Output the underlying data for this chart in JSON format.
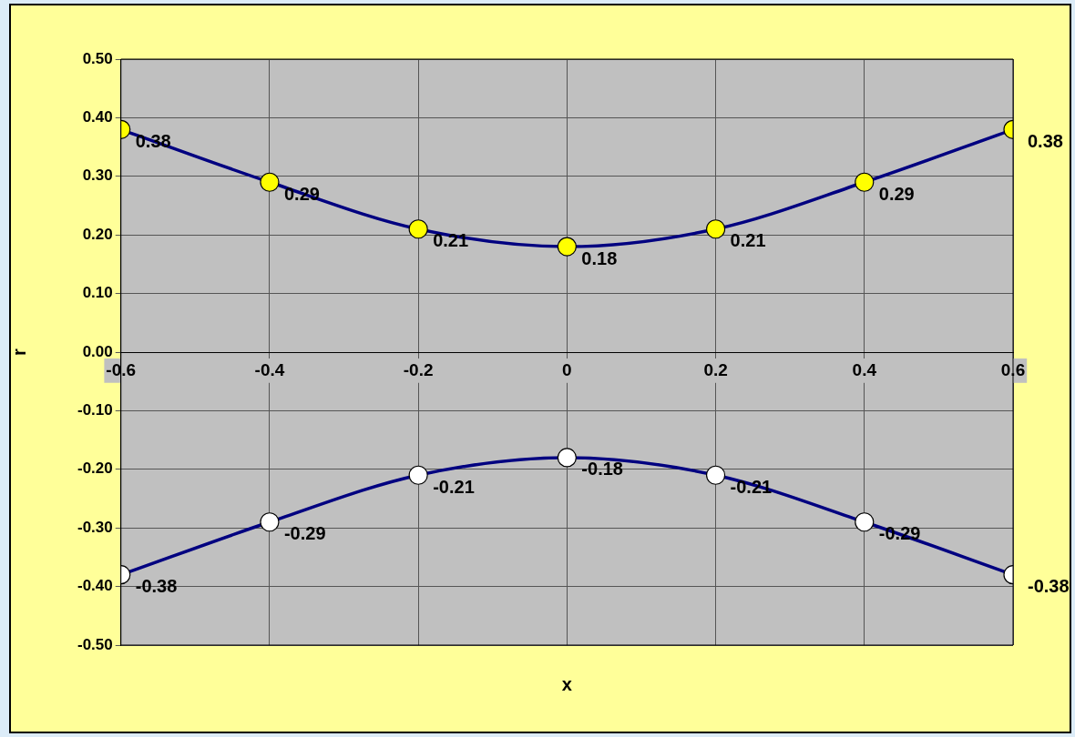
{
  "chart_data": {
    "type": "line",
    "xlabel": "x",
    "ylabel": "r",
    "x": [
      -0.6,
      -0.4,
      -0.2,
      0,
      0.2,
      0.4,
      0.6
    ],
    "series": [
      {
        "color": "#000080",
        "colors": [
          "#ffff00",
          "#ffff00",
          "#ffff00",
          "#ffff00",
          "#ffff00",
          "#ffff00",
          "#ffff00"
        ],
        "values": [
          0.38,
          0.29,
          0.21,
          0.18,
          0.21,
          0.29,
          0.38
        ]
      },
      {
        "color": "#000080",
        "colors": [
          "#ffffff",
          "#ffffff",
          "#ffffff",
          "#ffffff",
          "#ffffff",
          "#ffffff",
          "#ffffff"
        ],
        "values": [
          -0.38,
          -0.29,
          -0.21,
          -0.18,
          -0.21,
          -0.29,
          -0.38
        ]
      }
    ],
    "xlim": [
      -0.6,
      0.6
    ],
    "xticks": [
      -0.6,
      -0.4,
      -0.2,
      0,
      0.2,
      0.4,
      0.6
    ],
    "ylim": [
      -0.5,
      0.5
    ],
    "yticks": [
      {
        "value": -0.5,
        "label": "-0.50"
      },
      {
        "value": -0.4,
        "label": "-0.40"
      },
      {
        "value": -0.3,
        "label": "-0.30"
      },
      {
        "value": -0.2,
        "label": "-0.20"
      },
      {
        "value": -0.1,
        "label": "-0.10"
      },
      {
        "value": 0,
        "label": "0.00"
      },
      {
        "value": 0.1,
        "label": "0.10"
      },
      {
        "value": 0.2,
        "label": "0.20"
      },
      {
        "value": 0.3,
        "label": "0.30"
      },
      {
        "value": 0.4,
        "label": "0.40"
      },
      {
        "value": 0.5,
        "label": "0.50"
      }
    ],
    "grid": true,
    "legend": false,
    "marker": "circle",
    "line_style": "solid",
    "data_labels": true
  }
}
